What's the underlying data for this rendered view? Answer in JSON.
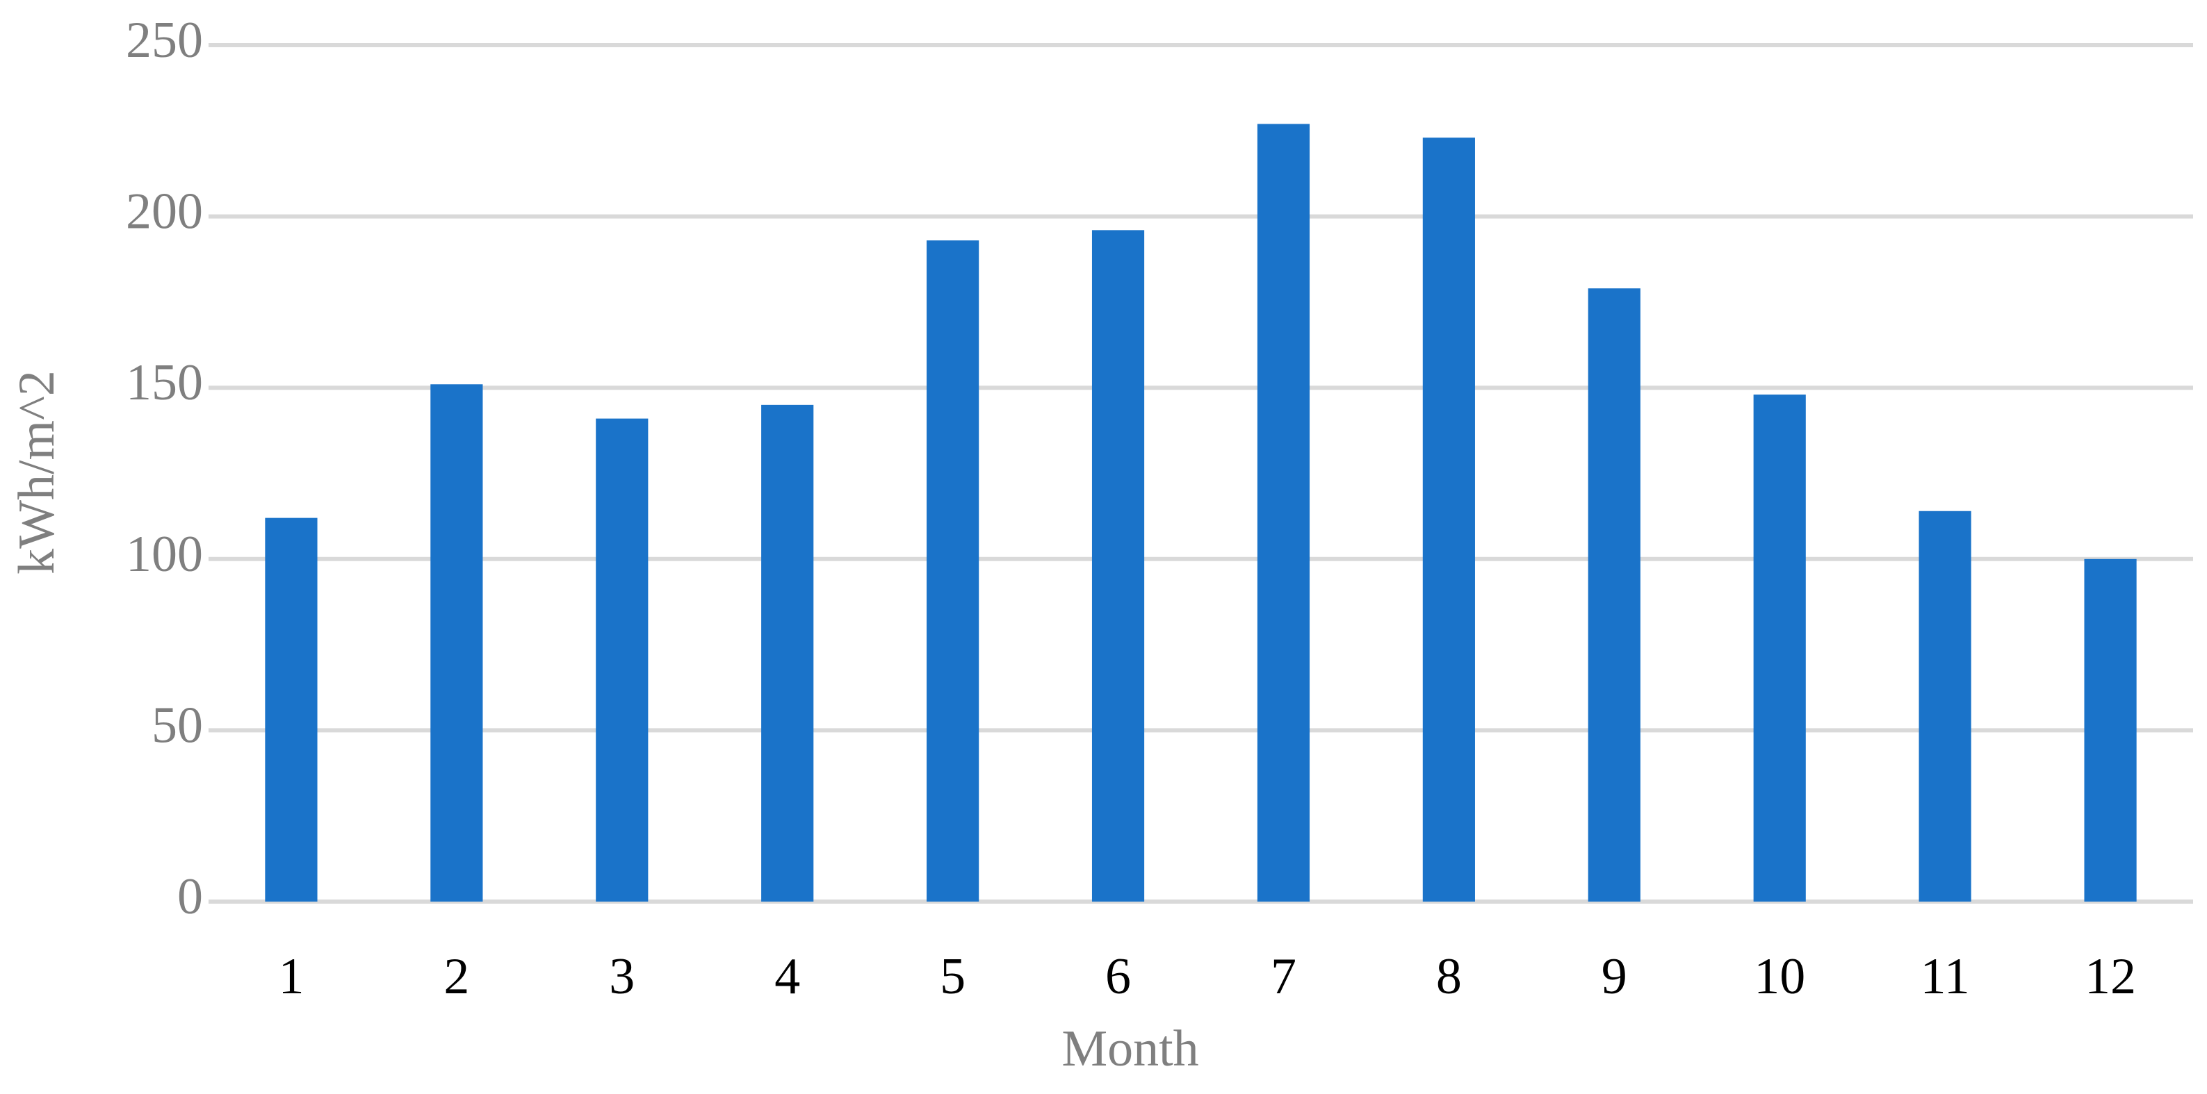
{
  "chart_data": {
    "type": "bar",
    "categories": [
      "1",
      "2",
      "3",
      "4",
      "5",
      "6",
      "7",
      "8",
      "9",
      "10",
      "11",
      "12"
    ],
    "values": [
      112,
      151,
      141,
      145,
      193,
      196,
      227,
      223,
      179,
      148,
      114,
      100
    ],
    "color": "#1a73c9",
    "x_label": "Month",
    "y_label": "kWh/m^2",
    "ylim": [
      0,
      250
    ],
    "yticks": [
      0,
      50,
      100,
      150,
      200,
      250
    ],
    "grid": true
  }
}
